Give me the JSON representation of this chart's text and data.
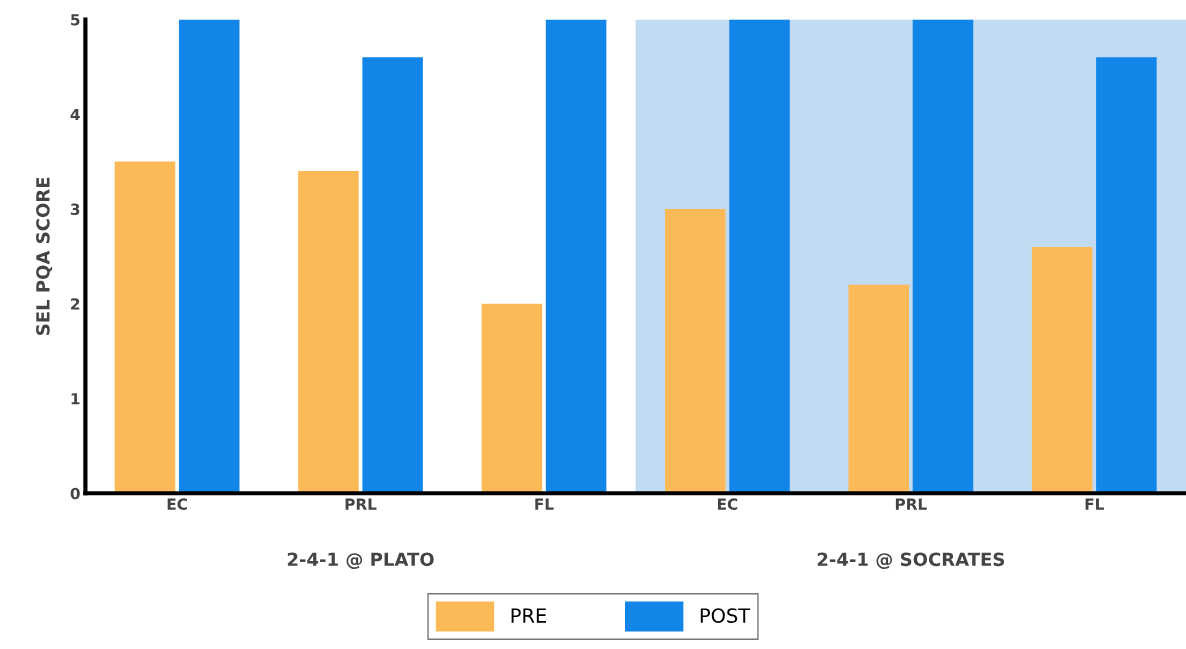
{
  "chart_data": {
    "type": "bar",
    "ylabel": "SEL PQA SCORE",
    "categories": [
      "EC",
      "PRL",
      "FL",
      "EC",
      "PRL",
      "FL"
    ],
    "series": [
      {
        "name": "PRE",
        "color": "#fbb957",
        "values": [
          3.5,
          3.4,
          2.0,
          3.0,
          2.2,
          2.6
        ]
      },
      {
        "name": "POST",
        "color": "#1185e8",
        "values": [
          5,
          4.6,
          5,
          5,
          5,
          4.6
        ]
      }
    ],
    "ylim": [
      0,
      5
    ],
    "yticks": [
      0,
      1,
      2,
      3,
      4,
      5
    ],
    "grid": false,
    "legend": "bottom",
    "annotations": [
      "2-4-1 @ PLATO",
      "2-4-1 @ SOCRATES"
    ]
  }
}
